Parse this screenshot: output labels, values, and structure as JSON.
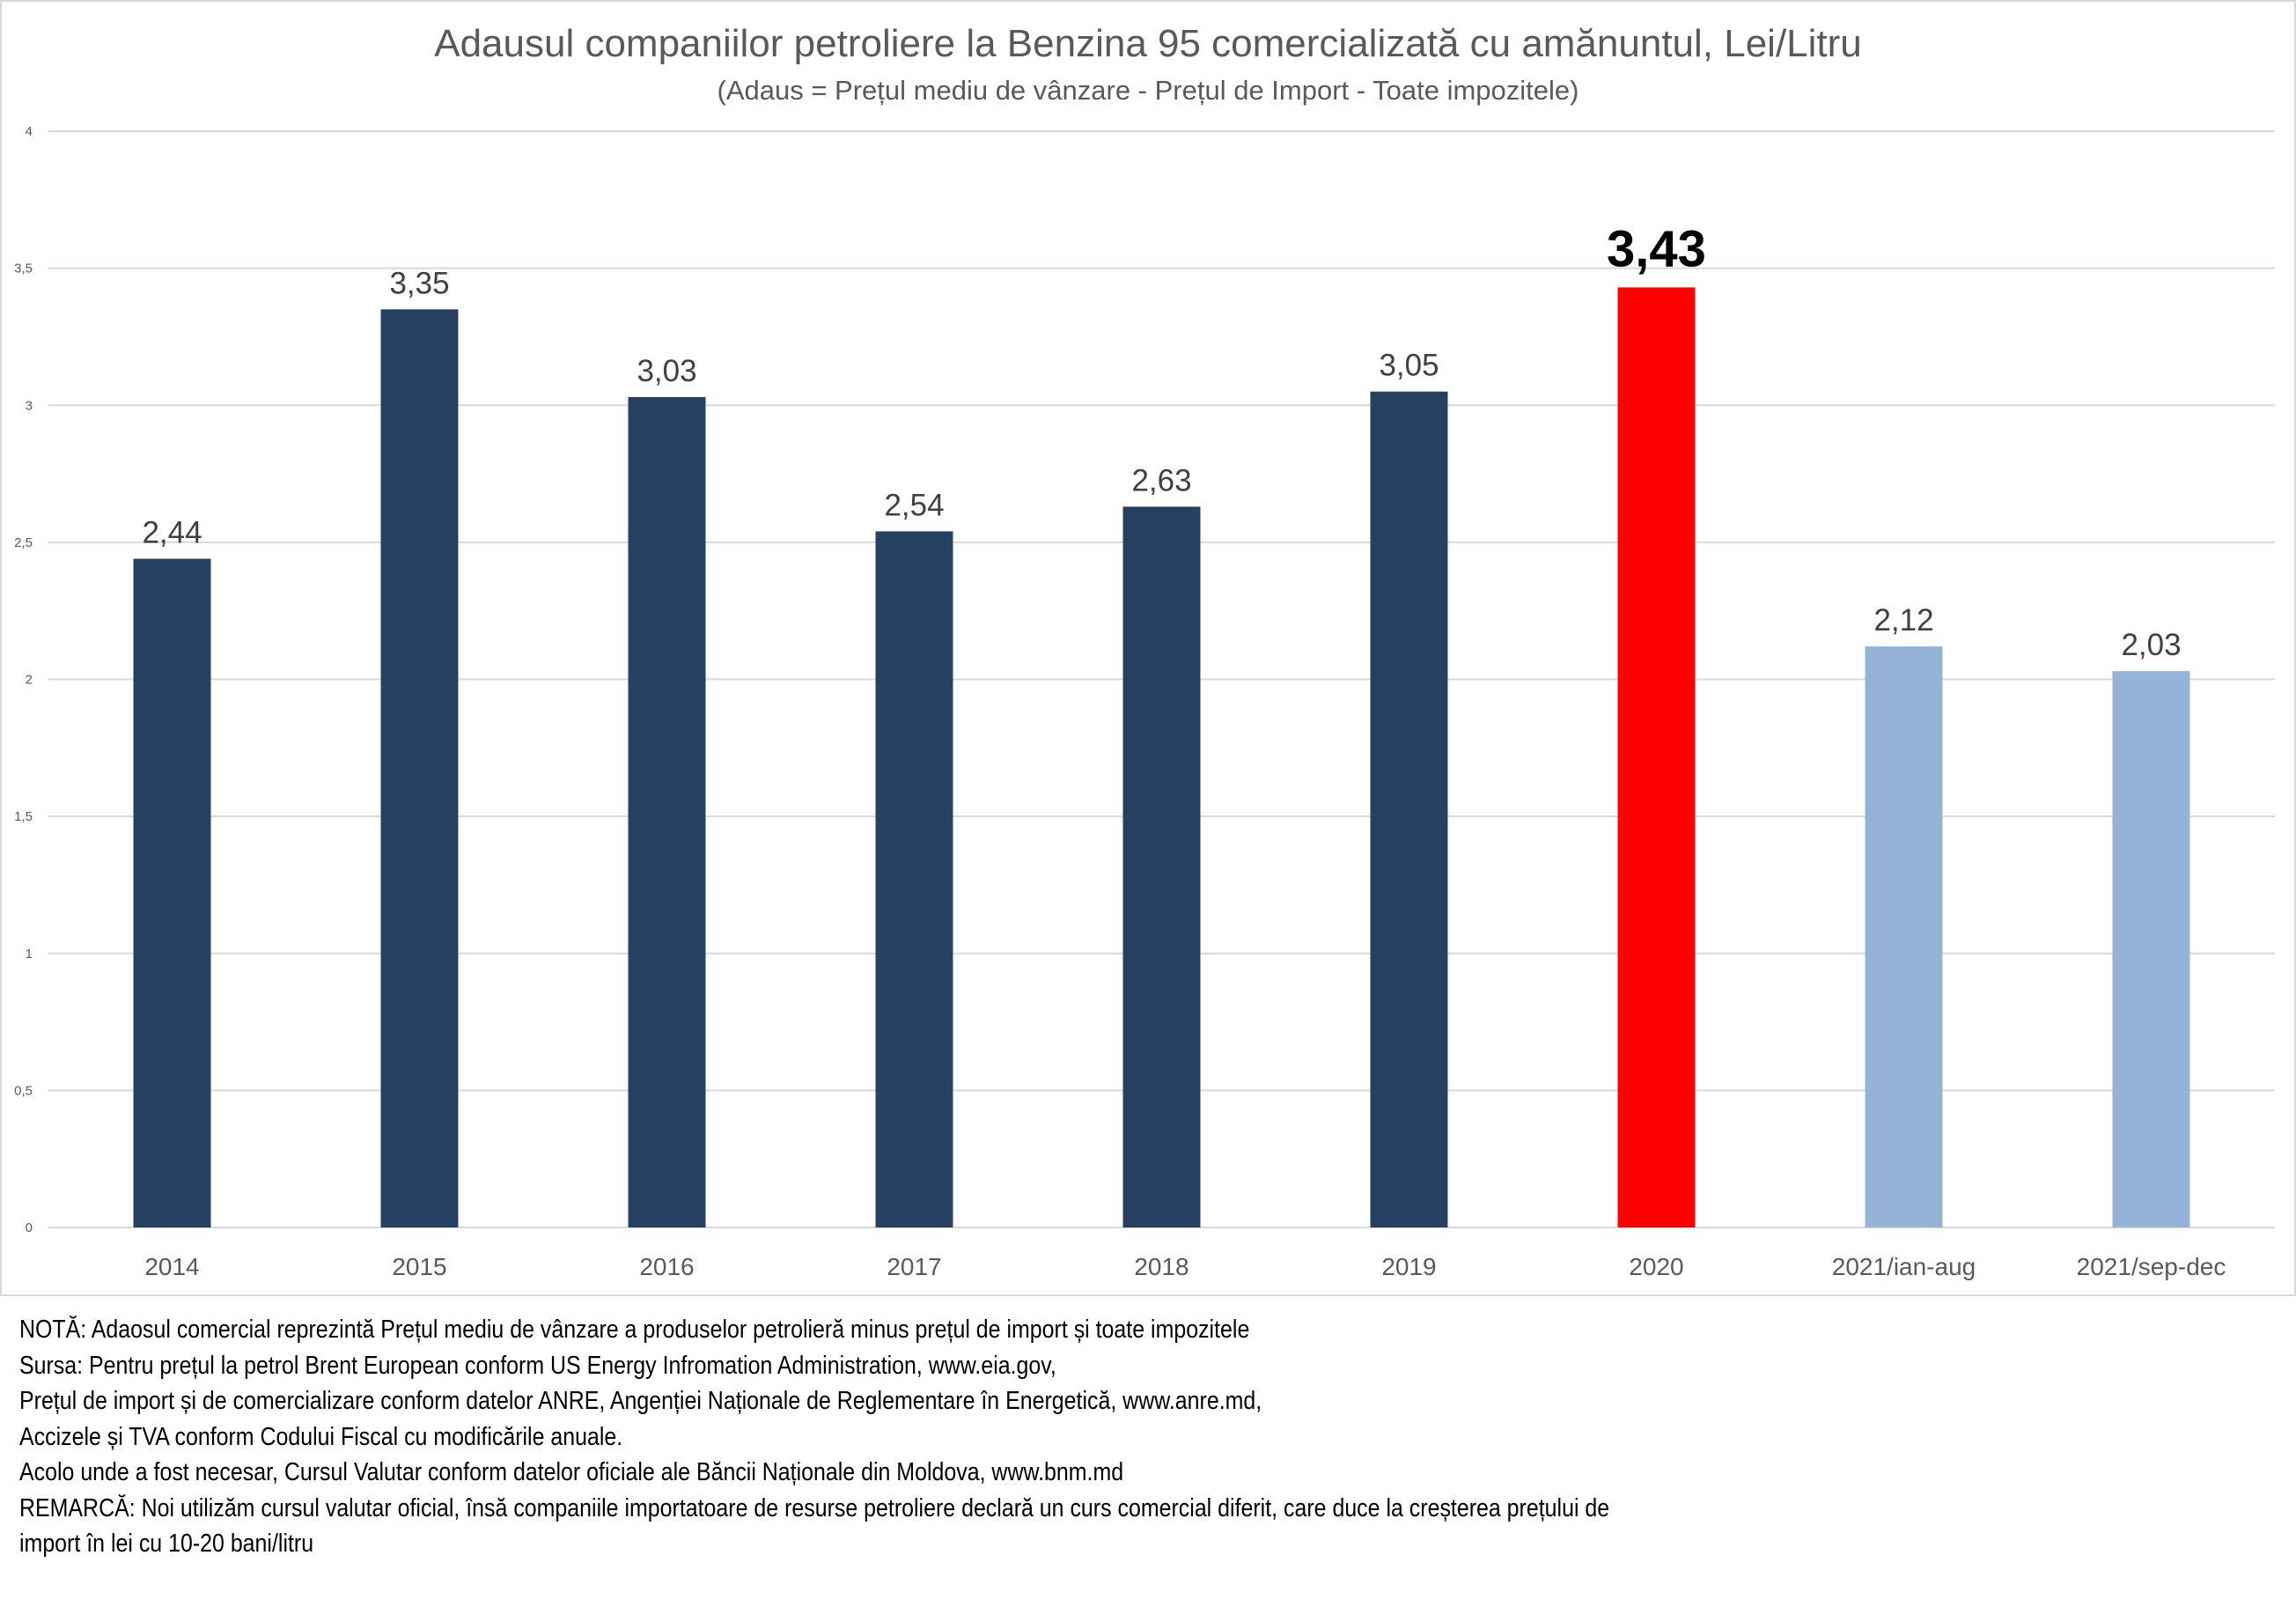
{
  "chart_data": {
    "type": "bar",
    "title": "Adausul companiilor petroliere la Benzina 95 comercializată cu amănuntul, Lei/Litru",
    "subtitle": "(Adaus = Prețul mediu de vânzare - Prețul de Import - Toate impozitele)",
    "xlabel": "",
    "ylabel": "",
    "ylim": [
      0,
      4
    ],
    "yticks": [
      0,
      0.5,
      1,
      1.5,
      2,
      2.5,
      3,
      3.5,
      4
    ],
    "ytick_labels": [
      "0",
      "0,5",
      "1",
      "1,5",
      "2",
      "2,5",
      "3",
      "3,5",
      "4"
    ],
    "grid": true,
    "legend": "none",
    "categories": [
      "2014",
      "2015",
      "2016",
      "2017",
      "2018",
      "2019",
      "2020",
      "2021/ian-aug",
      "2021/sep-dec"
    ],
    "values": [
      2.44,
      3.35,
      3.03,
      2.54,
      2.63,
      3.05,
      3.43,
      2.12,
      2.03
    ],
    "value_labels": [
      "2,44",
      "3,35",
      "3,03",
      "2,54",
      "2,63",
      "3,05",
      "3,43",
      "2,12",
      "2,03"
    ],
    "bar_colors": [
      "#264061",
      "#264061",
      "#264061",
      "#264061",
      "#264061",
      "#264061",
      "#ff0000",
      "#95b3d7",
      "#95b3d7"
    ],
    "highlight_index": 6
  },
  "notes": [
    "NOTĂ: Adaosul comercial reprezintă Prețul mediu de vânzare a produselor petrolieră minus prețul de import și toate impozitele",
    "Sursa: Pentru prețul la petrol Brent European conform US Energy Infromation Administration, www.eia.gov,",
    "Prețul de import și de comercializare conform datelor ANRE, Angenției Naționale de Reglementare în Energetică, www.anre.md,",
    "Accizele și TVA conform Codului Fiscal cu modificările anuale.",
    "Acolo unde a fost necesar, Cursul Valutar conform datelor oficiale ale Băncii Naționale din Moldova, www.bnm.md",
    "REMARCĂ: Noi utilizăm cursul valutar oficial, însă companiile importatoare de resurse petroliere declară un curs comercial diferit, care duce la creșterea prețului de",
    "import în lei cu 10-20 bani/litru"
  ]
}
